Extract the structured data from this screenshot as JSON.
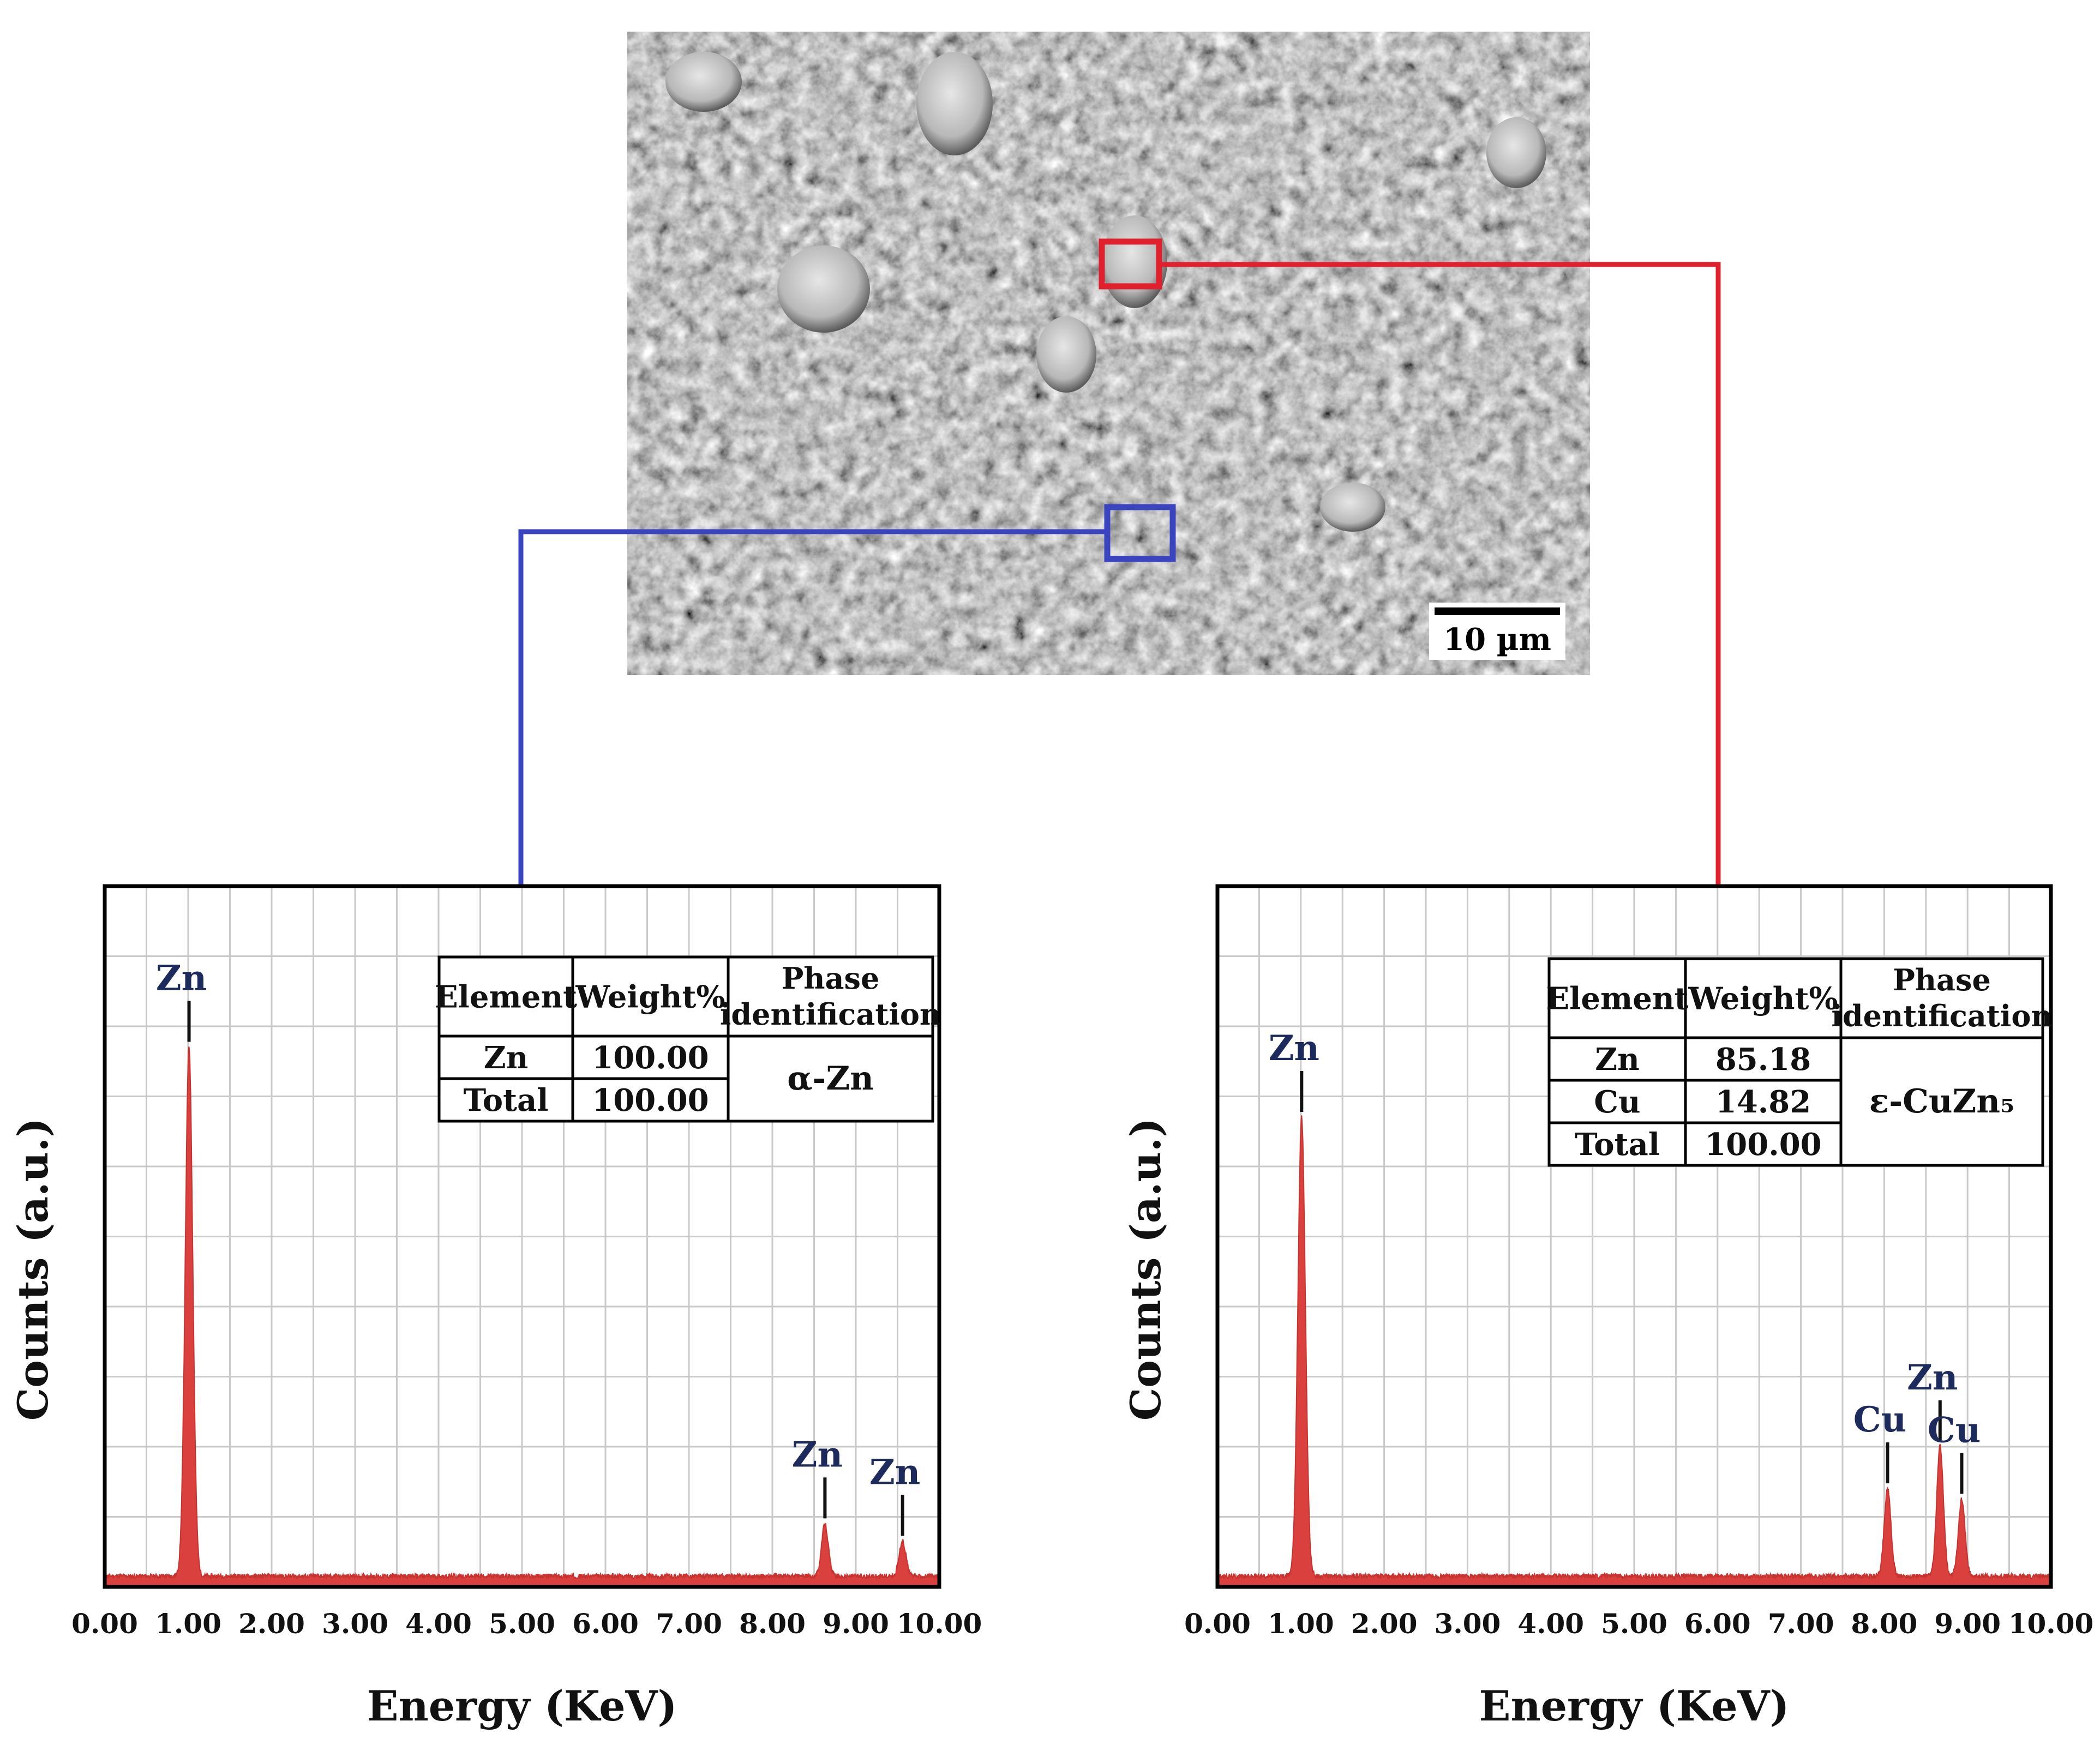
{
  "sem": {
    "scale_bar_label": "10 µm",
    "roi_colors": {
      "left": "#3a44c0",
      "right": "#e0202c"
    }
  },
  "chart_data": [
    {
      "type": "area",
      "color": "#d9403e",
      "xlabel": "Energy (KeV)",
      "ylabel": "Counts (a.u.)",
      "xlim": [
        0,
        10
      ],
      "ylim": [
        0,
        1
      ],
      "grid": true,
      "x_ticks": [
        "0.00",
        "1.00",
        "2.00",
        "3.00",
        "4.00",
        "5.00",
        "6.00",
        "7.00",
        "8.00",
        "9.00",
        "10.00"
      ],
      "peaks": [
        {
          "label": "Zn",
          "x": 1.01,
          "y": 0.77
        },
        {
          "label": "Zn",
          "x": 8.63,
          "y": 0.09
        },
        {
          "label": "Zn",
          "x": 9.56,
          "y": 0.065
        }
      ],
      "baseline": 0.015,
      "table": {
        "headers": [
          "Element",
          "Weight%",
          "Phase identification"
        ],
        "rows": [
          {
            "element": "Zn",
            "weight": "100.00"
          },
          {
            "element": "Total",
            "weight": "100.00"
          }
        ],
        "phase": "α-Zn"
      }
    },
    {
      "type": "area",
      "color": "#d9403e",
      "xlabel": "Energy (KeV)",
      "ylabel": "Counts (a.u.)",
      "xlim": [
        0,
        10
      ],
      "ylim": [
        0,
        1
      ],
      "grid": true,
      "x_ticks": [
        "0.00",
        "1.00",
        "2.00",
        "3.00",
        "4.00",
        "5.00",
        "6.00",
        "7.00",
        "8.00",
        "9.00",
        "10.00"
      ],
      "peaks": [
        {
          "label": "Zn",
          "x": 1.01,
          "y": 0.67
        },
        {
          "label": "Cu",
          "x": 8.04,
          "y": 0.14
        },
        {
          "label": "Zn",
          "x": 8.67,
          "y": 0.2
        },
        {
          "label": "Cu",
          "x": 8.93,
          "y": 0.125
        }
      ],
      "baseline": 0.015,
      "table": {
        "headers": [
          "Element",
          "Weight%",
          "Phase identification"
        ],
        "rows": [
          {
            "element": "Zn",
            "weight": "85.18"
          },
          {
            "element": "Cu",
            "weight": "14.82"
          },
          {
            "element": "Total",
            "weight": "100.00"
          }
        ],
        "phase": "ε-CuZn₅"
      }
    }
  ]
}
